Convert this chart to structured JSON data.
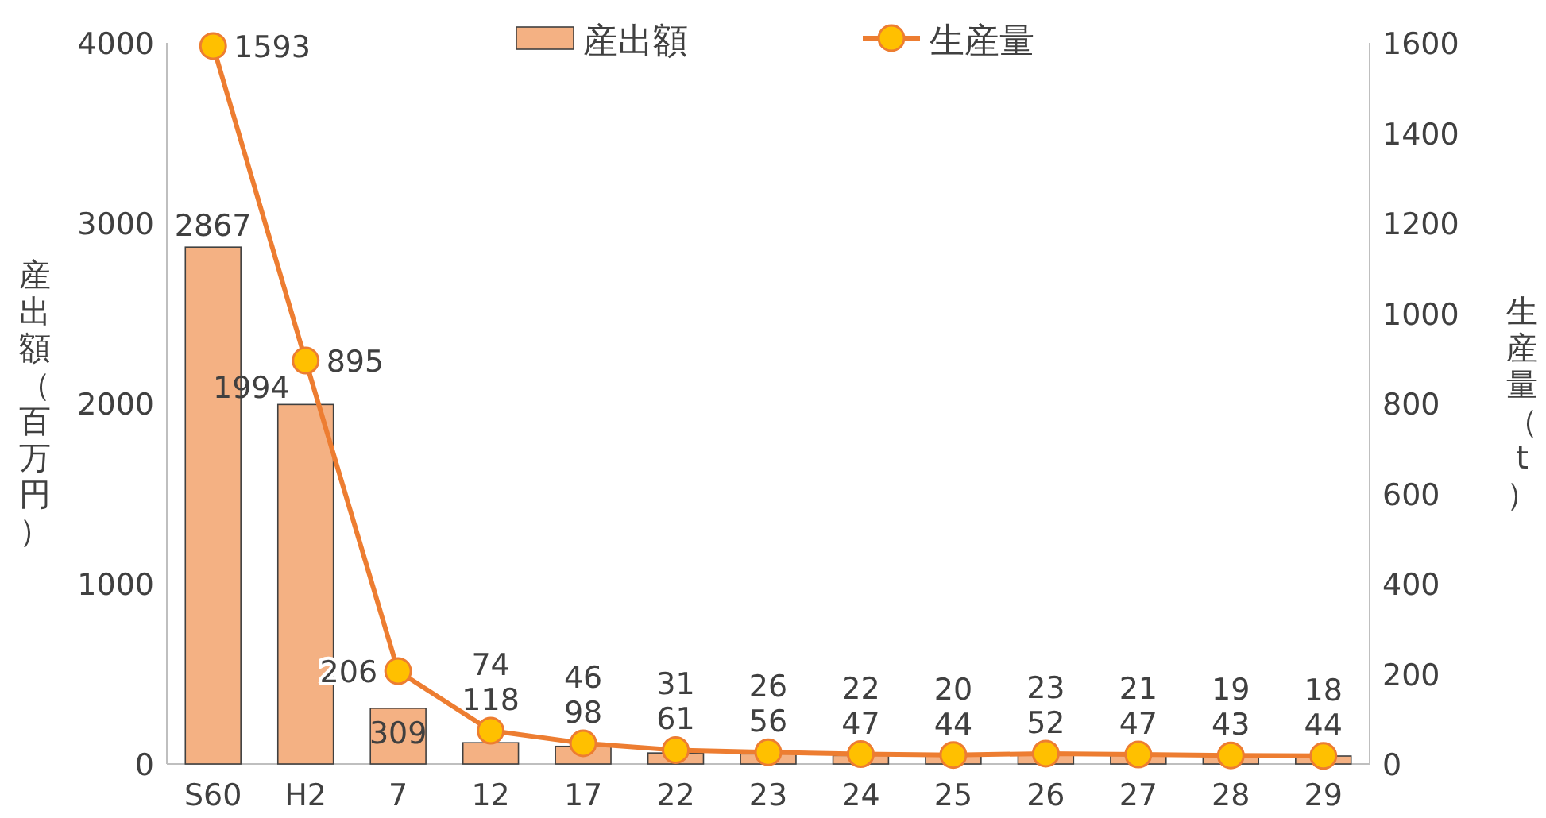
{
  "chart_data": {
    "type": "bar",
    "categories": [
      "S60",
      "H2",
      "7",
      "12",
      "17",
      "22",
      "23",
      "24",
      "25",
      "26",
      "27",
      "28",
      "29"
    ],
    "ylabel": "産出額（百万円）",
    "y2label": "生産量（t）",
    "series": [
      {
        "name": "産出額",
        "color": "#f4b183",
        "values": [
          2867,
          1994,
          309,
          118,
          98,
          61,
          56,
          47,
          44,
          52,
          47,
          43,
          44
        ]
      },
      {
        "name": "生産量",
        "type": "line",
        "axis": "y2",
        "color": "#ed7d31",
        "marker": "circle",
        "values": [
          1593,
          895,
          206,
          74,
          46,
          31,
          26,
          22,
          20,
          23,
          21,
          19,
          18
        ]
      }
    ],
    "ylim": [
      0,
      4000
    ],
    "yticks": [
      0,
      1000,
      2000,
      3000,
      4000
    ],
    "y2lim": [
      0,
      1600
    ],
    "y2ticks": [
      0,
      200,
      400,
      600,
      800,
      1000,
      1200,
      1400,
      1600
    ],
    "data_labels": true,
    "legend": "top",
    "grid": false
  }
}
